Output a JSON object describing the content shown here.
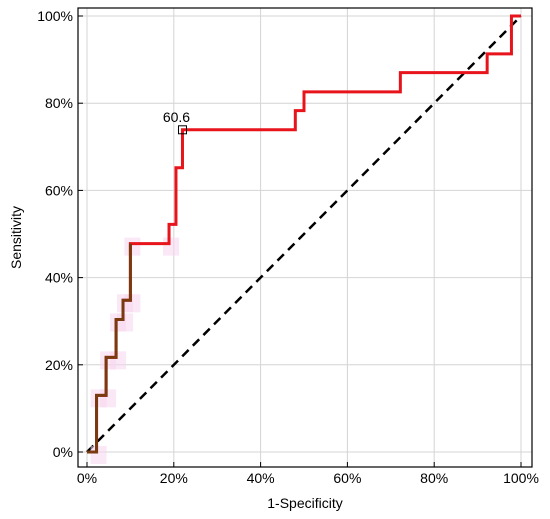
{
  "chart_data": {
    "type": "line",
    "xlabel": "1-Specificity",
    "ylabel": "Sensitivity",
    "xlim": [
      0,
      1
    ],
    "ylim": [
      0,
      1
    ],
    "grid": true,
    "x_ticks": [
      {
        "value": 0.0,
        "label": "0%"
      },
      {
        "value": 0.2,
        "label": "20%"
      },
      {
        "value": 0.4,
        "label": "40%"
      },
      {
        "value": 0.6,
        "label": "60%"
      },
      {
        "value": 0.8,
        "label": "80%"
      },
      {
        "value": 1.0,
        "label": "100%"
      }
    ],
    "y_ticks": [
      {
        "value": 0.0,
        "label": "0%"
      },
      {
        "value": 0.2,
        "label": "20%"
      },
      {
        "value": 0.4,
        "label": "40%"
      },
      {
        "value": 0.6,
        "label": "60%"
      },
      {
        "value": 0.8,
        "label": "80%"
      },
      {
        "value": 1.0,
        "label": "100%"
      }
    ],
    "series": [
      {
        "kind": "roc-step",
        "color": "#e8141b",
        "lower_color": "#7a3a10",
        "points": [
          [
            0.0,
            0.0
          ],
          [
            0.022,
            0.0
          ],
          [
            0.022,
            0.13
          ],
          [
            0.044,
            0.13
          ],
          [
            0.044,
            0.217
          ],
          [
            0.067,
            0.217
          ],
          [
            0.067,
            0.304
          ],
          [
            0.083,
            0.304
          ],
          [
            0.083,
            0.348
          ],
          [
            0.1,
            0.348
          ],
          [
            0.1,
            0.478
          ],
          [
            0.189,
            0.478
          ],
          [
            0.189,
            0.522
          ],
          [
            0.205,
            0.522
          ],
          [
            0.205,
            0.652
          ],
          [
            0.22,
            0.652
          ],
          [
            0.22,
            0.739
          ],
          [
            0.48,
            0.739
          ],
          [
            0.48,
            0.783
          ],
          [
            0.5,
            0.783
          ],
          [
            0.5,
            0.826
          ],
          [
            0.722,
            0.826
          ],
          [
            0.722,
            0.87
          ],
          [
            0.922,
            0.87
          ],
          [
            0.922,
            0.913
          ],
          [
            0.978,
            0.913
          ],
          [
            0.978,
            1.0
          ],
          [
            1.0,
            1.0
          ]
        ]
      },
      {
        "kind": "reference-diagonal",
        "color": "#000000",
        "points": [
          [
            0.0,
            0.0
          ],
          [
            1.0,
            1.0
          ]
        ]
      }
    ],
    "annotations": [
      {
        "text": "60.6",
        "x": 0.22,
        "y": 0.739,
        "marker": "square"
      }
    ]
  }
}
